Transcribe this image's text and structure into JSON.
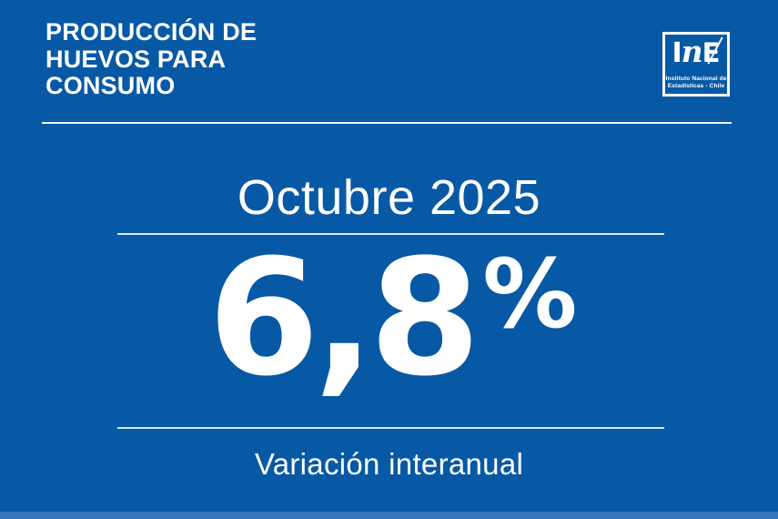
{
  "theme": {
    "background": "#0859A5",
    "text": "#FFFFFF",
    "divider": "#EEF5FB",
    "bottom_strip": "#3577B9"
  },
  "header": {
    "title": "PRODUCCIÓN DE\nHUEVOS PARA\nCONSUMO",
    "logo": {
      "letter_i": "I",
      "letter_n": "n",
      "letter_e": "E",
      "caption_line1": "Instituto Nacional de",
      "caption_line2": "Estadísticas - Chile"
    }
  },
  "main": {
    "period": "Octubre 2025",
    "value": "6,8",
    "unit": "%",
    "caption": "Variación interanual"
  },
  "chart_data": {
    "type": "table",
    "title": "Producción de huevos para consumo",
    "period": "Octubre 2025",
    "metric": "Variación interanual",
    "value": 6.8,
    "unit": "%"
  }
}
